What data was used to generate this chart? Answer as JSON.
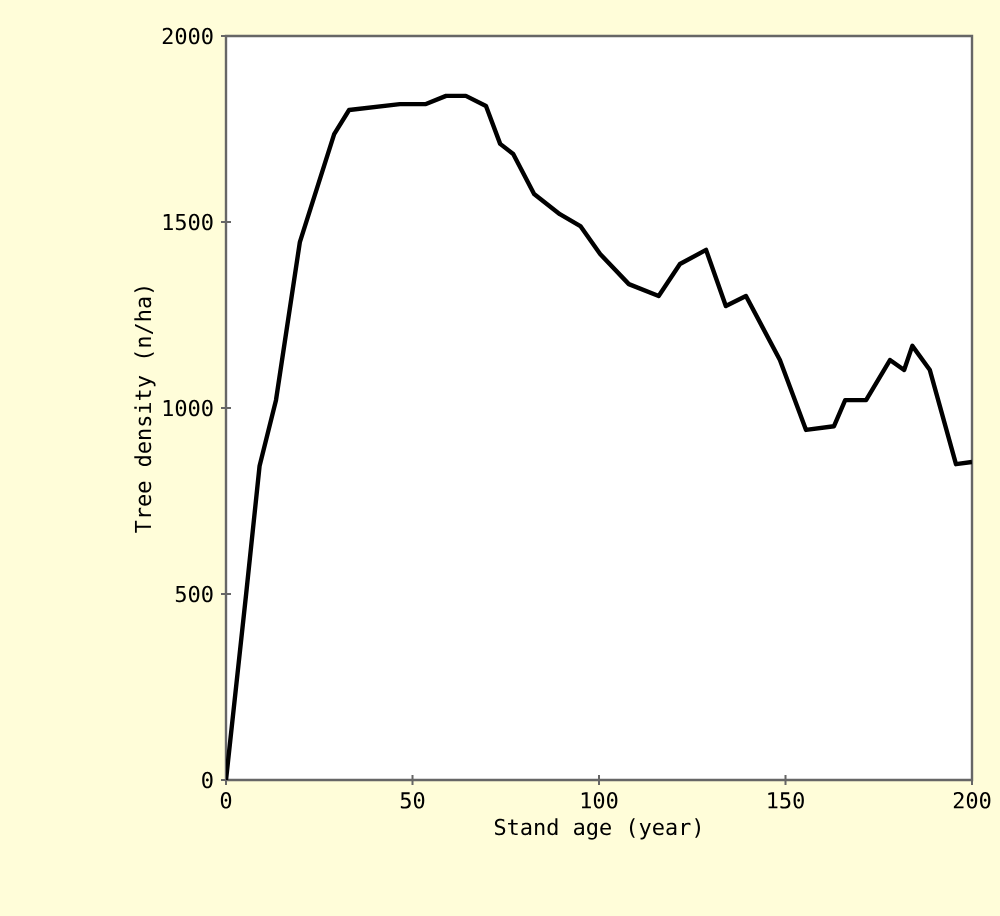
{
  "chart_data": {
    "type": "line",
    "xlabel": "Stand age (year)",
    "ylabel": "Tree density (n/ha)",
    "xlim": [
      0,
      200
    ],
    "ylim": [
      0,
      2000
    ],
    "xticks": [
      0,
      50,
      100,
      150,
      200
    ],
    "yticks": [
      0,
      500,
      1000,
      1500,
      2000
    ],
    "marker": "none",
    "line_style": "solid",
    "series": [
      {
        "color": "#000000",
        "x": [
          0,
          5.4,
          9,
          13.4,
          19.8,
          29,
          33,
          46.6,
          53.6,
          59,
          64.3,
          69.7,
          73.5,
          77,
          82.6,
          89.5,
          95,
          100.3,
          108,
          116,
          121.7,
          128.7,
          134,
          139.4,
          148.5,
          155.5,
          163,
          166,
          171.6,
          178,
          181.8,
          184,
          188.7,
          195.7,
          200
        ],
        "values": [
          0,
          500,
          844,
          1021,
          1446,
          1736,
          1801,
          1817,
          1817,
          1839,
          1839,
          1812,
          1710,
          1683,
          1575,
          1521,
          1489,
          1414,
          1333,
          1301,
          1387,
          1425,
          1274,
          1301,
          1129,
          941,
          951,
          1021,
          1021,
          1129,
          1102,
          1167,
          1102,
          849,
          855
        ]
      }
    ]
  }
}
